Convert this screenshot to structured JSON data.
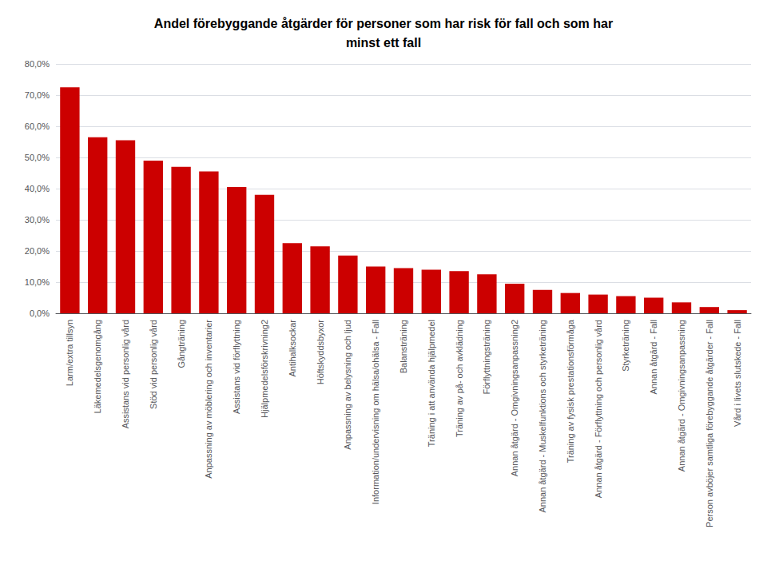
{
  "chart_data": {
    "type": "bar",
    "title": "Andel förebyggande åtgärder för personer som har risk för fall och som har\nminst ett fall",
    "categories": [
      "Larm/extra tillsyn",
      "Läkemedelsgenomgång",
      "Assistans vid personlig vård",
      "Stöd vid personlig vård",
      "Gångträning",
      "Anpassning av möblering och inventarier",
      "Assistans vid förflyttning",
      "Hjälpmedelsförskrivning2",
      "Antihalksockar",
      "Höftskyddsbyxor",
      "Anpassning av belysning och ljud",
      "Information/undervisning om hälsa/ohälsa - Fall",
      "Balansträning",
      "Träning i att använda hjälpmedel",
      "Träning av på- och avklädning",
      "Förflyttningsträning",
      "Annan åtgärd - Omgivningsanpassning2",
      "Annan åtgärd - Muskelfunktions och styrketräning",
      "Träning av fysisk prestationsförmåga",
      "Annan åtgärd - Förflyttning och personlig vård",
      "Styrketräning",
      "Annan åtgärd - Fall",
      "Annan åtgärd - Omgivningsanpassning",
      "Person avböjer samtliga förebyggande åtgärder - Fall",
      "Vård i livets slutskede - Fall"
    ],
    "values": [
      0.725,
      0.565,
      0.555,
      0.49,
      0.47,
      0.455,
      0.405,
      0.38,
      0.225,
      0.215,
      0.185,
      0.15,
      0.145,
      0.14,
      0.135,
      0.125,
      0.095,
      0.075,
      0.065,
      0.06,
      0.055,
      0.05,
      0.035,
      0.02,
      0.01
    ],
    "color": "#cc0000",
    "ylim": [
      0.0,
      0.8
    ],
    "yticks": [
      {
        "value": 0.0,
        "label": "0,0%"
      },
      {
        "value": 0.1,
        "label": "10,0%"
      },
      {
        "value": 0.2,
        "label": "20,0%"
      },
      {
        "value": 0.3,
        "label": "30,0%"
      },
      {
        "value": 0.4,
        "label": "40,0%"
      },
      {
        "value": 0.5,
        "label": "50,0%"
      },
      {
        "value": 0.6,
        "label": "60,0%"
      },
      {
        "value": 0.7,
        "label": "70,0%"
      },
      {
        "value": 0.8,
        "label": "80,0%"
      }
    ],
    "grid": true
  }
}
